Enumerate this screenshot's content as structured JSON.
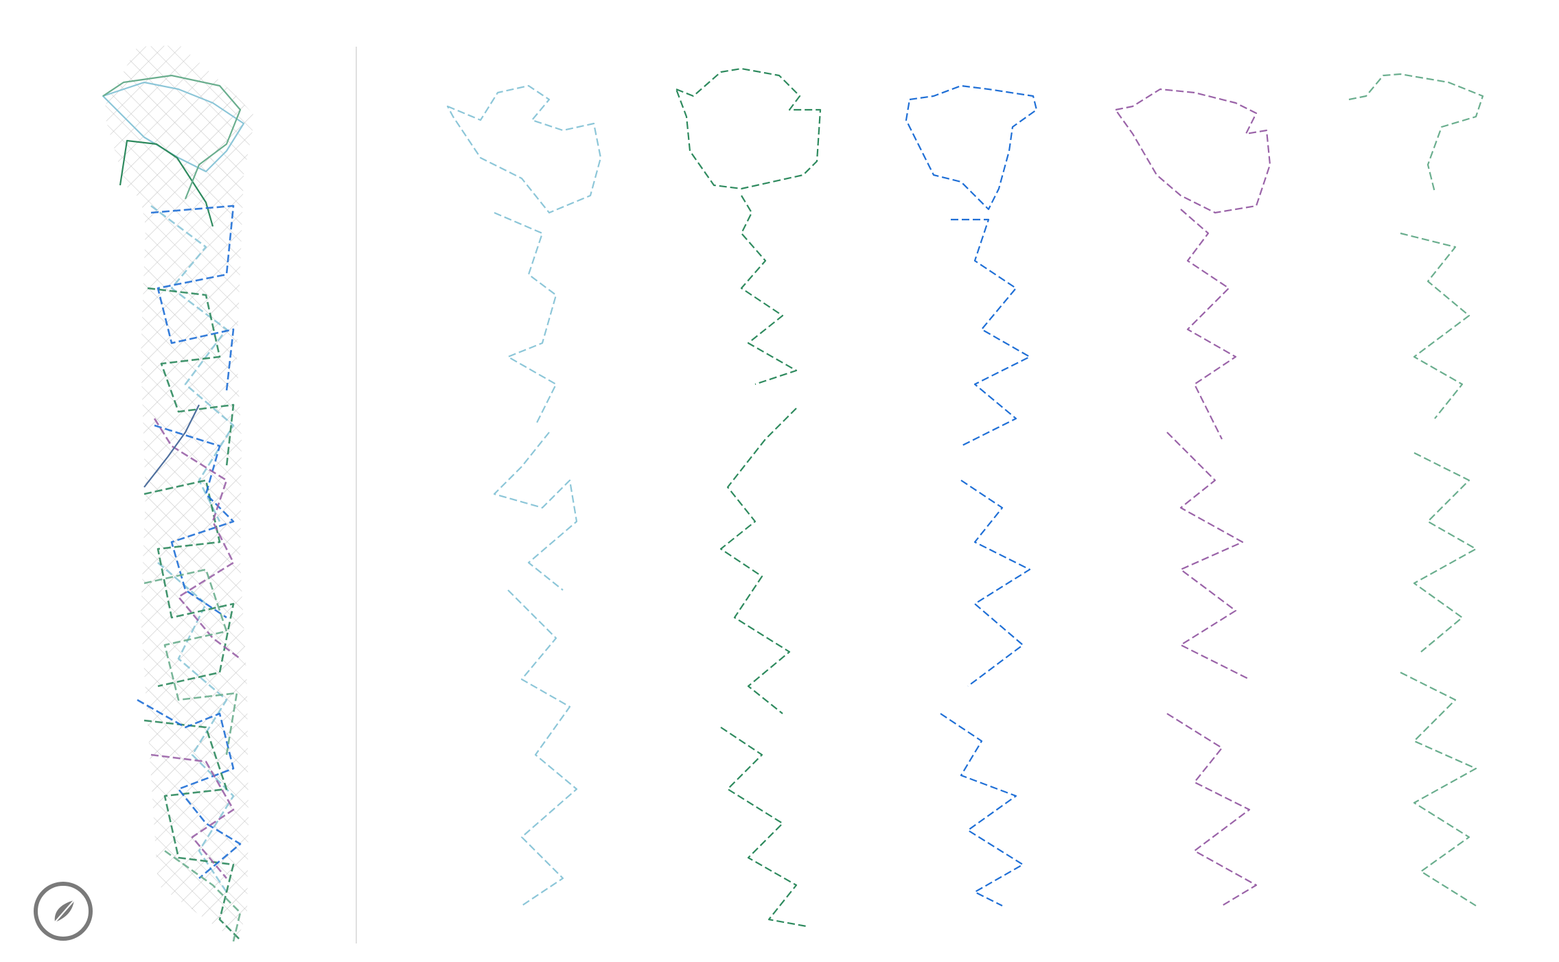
{
  "icons": {
    "compass": "compass-icon"
  },
  "colors": {
    "grid": "#c8c8c8",
    "divider": "#d5d5d5",
    "compass": "#7a7a7a",
    "routes": [
      "#8cc6d8",
      "#2e8a5e",
      "#1f6fd6",
      "#9a63a8",
      "#6aae8e"
    ]
  },
  "routes": [
    {
      "id": "route-1",
      "color_index": 0
    },
    {
      "id": "route-2",
      "color_index": 1
    },
    {
      "id": "route-3",
      "color_index": 2
    },
    {
      "id": "route-4",
      "color_index": 3
    },
    {
      "id": "route-5",
      "color_index": 4
    }
  ]
}
